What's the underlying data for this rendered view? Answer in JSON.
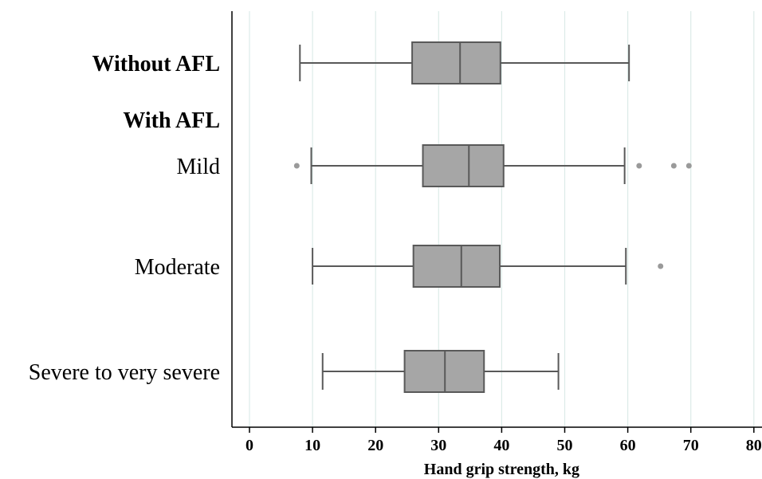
{
  "chart_data": {
    "type": "boxplot",
    "orientation": "horizontal",
    "xlabel": "Hand grip strength, kg",
    "xlim": [
      -3,
      81
    ],
    "xticks": [
      0,
      10,
      20,
      30,
      40,
      50,
      60,
      70,
      80
    ],
    "grid": "vertical",
    "colors": {
      "box": "#a6a6a6",
      "stroke": "#595959",
      "grid": "#dcebe8",
      "outlier": "#9a9a9a"
    },
    "row_labels": [
      {
        "text": "Without AFL",
        "bold": true
      },
      {
        "text": "With AFL",
        "bold": true
      },
      {
        "text": "Mild",
        "bold": false
      },
      {
        "text": "Moderate",
        "bold": false
      },
      {
        "text": "Severe to very severe",
        "bold": false
      }
    ],
    "boxes": [
      {
        "label": "Without AFL",
        "min": 8.0,
        "q1": 25.8,
        "median": 33.4,
        "q3": 39.8,
        "max": 60.2,
        "outliers": []
      },
      {
        "label": "Mild",
        "min": 9.8,
        "q1": 27.5,
        "median": 34.8,
        "q3": 40.3,
        "max": 59.5,
        "outliers": [
          7.5,
          61.8,
          67.3,
          69.7
        ]
      },
      {
        "label": "Moderate",
        "min": 10.0,
        "q1": 26.0,
        "median": 33.6,
        "q3": 39.7,
        "max": 59.7,
        "outliers": [
          65.2
        ]
      },
      {
        "label": "Severe to very severe",
        "min": 11.6,
        "q1": 24.6,
        "median": 31.0,
        "q3": 37.2,
        "max": 49.0,
        "outliers": []
      }
    ]
  }
}
